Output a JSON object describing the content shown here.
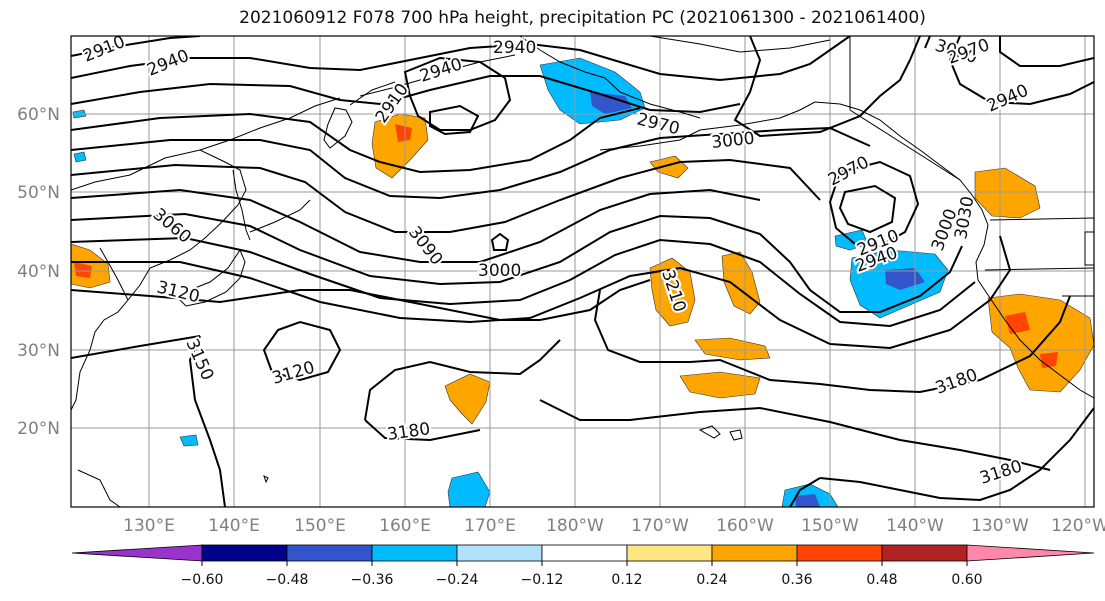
{
  "title": "2021060912 F078 700 hPa height, precipitation PC (2021061300 - 2021061400)",
  "lat_labels": [
    "60°N",
    "50°N",
    "40°N",
    "30°N",
    "20°N"
  ],
  "lon_labels": [
    "130°E",
    "140°E",
    "150°E",
    "160°E",
    "170°E",
    "180°W",
    "170°W",
    "160°W",
    "150°W",
    "140°W",
    "130°W",
    "120°W"
  ],
  "contour_labels": [
    "2910",
    "2940",
    "2940",
    "2940",
    "2910",
    "2970",
    "3000",
    "3000",
    "2970",
    "2940",
    "2970",
    "3000",
    "3060",
    "3090",
    "3000",
    "3120",
    "3150",
    "3120",
    "3180",
    "3210",
    "2910",
    "2940",
    "3180",
    "3180",
    "3030"
  ],
  "colorbar": {
    "ticks": [
      "−0.60",
      "−0.48",
      "−0.36",
      "−0.24",
      "−0.12",
      "0.12",
      "0.24",
      "0.36",
      "0.48",
      "0.60"
    ],
    "colors": [
      "#9933cc",
      "#000088",
      "#3355cc",
      "#00bbff",
      "#b0e2ff",
      "#ffffff",
      "#ffe680",
      "#ffa500",
      "#ff4500",
      "#b22222",
      "#ff88aa"
    ]
  }
}
